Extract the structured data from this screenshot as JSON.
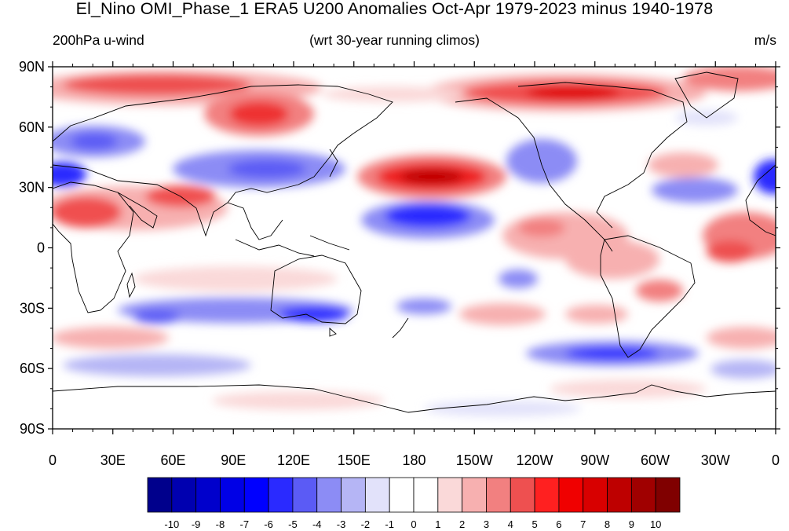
{
  "title": "El_Nino OMI_Phase_1 ERA5 U200 Anomalies Oct-Apr 1979-2023 minus 1940-1978",
  "left_subtitle": "200hPa u-wind",
  "center_subtitle": "(wrt 30-year running climos)",
  "right_subtitle": "m/s",
  "lat_labels": [
    "90N",
    "60N",
    "30N",
    "0",
    "30S",
    "60S",
    "90S"
  ],
  "lon_labels": [
    "0",
    "30E",
    "60E",
    "90E",
    "120E",
    "150E",
    "180",
    "150W",
    "120W",
    "90W",
    "60W",
    "30W",
    "0"
  ],
  "colorbar": {
    "labels": [
      "-10",
      "-9",
      "-8",
      "-7",
      "-6",
      "-5",
      "-4",
      "-3",
      "-2",
      "-1",
      "0",
      "1",
      "2",
      "3",
      "4",
      "5",
      "6",
      "7",
      "8",
      "9",
      "10"
    ],
    "colors": [
      "#00008c",
      "#0000b0",
      "#0000cc",
      "#0000e6",
      "#0000ff",
      "#2a2aff",
      "#5b5bf5",
      "#8c8cf5",
      "#b5b5f5",
      "#e2e2fa",
      "#ffffff",
      "#ffffff",
      "#fad9d9",
      "#f7b0b0",
      "#f28080",
      "#ee5050",
      "#ff2020",
      "#f00000",
      "#d80000",
      "#be0000",
      "#a00000",
      "#800000"
    ]
  }
}
